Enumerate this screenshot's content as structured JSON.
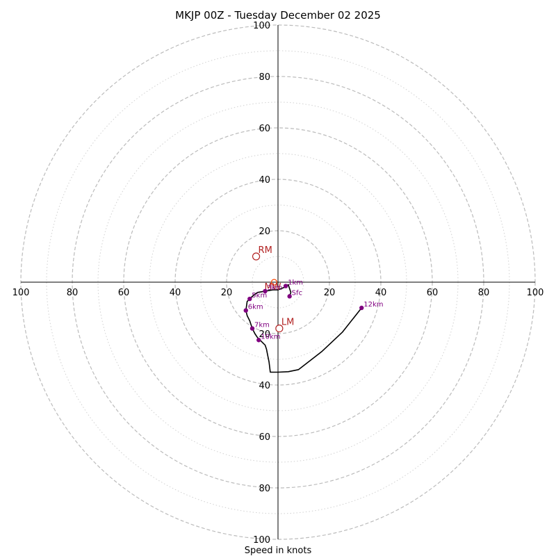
{
  "chart_data": {
    "type": "hodograph",
    "title": "MKJP 00Z - Tuesday December 02 2025",
    "xlabel": "Speed in knots",
    "rings_major": [
      20,
      40,
      60,
      80,
      100
    ],
    "rings_minor": [
      10,
      30,
      50,
      70,
      90
    ],
    "ring_limit": 100,
    "tick_labels": [
      "100",
      "80",
      "60",
      "40",
      "20",
      "20",
      "40",
      "60",
      "80",
      "100"
    ],
    "tick_values": [
      -100,
      -80,
      -60,
      -40,
      -20,
      20,
      40,
      60,
      80,
      100
    ],
    "grid": true,
    "hodograph_trace": [
      [
        4.5,
        -5.5
      ],
      [
        5,
        -4
      ],
      [
        4,
        -1
      ],
      [
        3,
        -1.5
      ],
      [
        2.5,
        -2
      ],
      [
        0,
        -3
      ],
      [
        -2,
        -3
      ],
      [
        -5,
        -3.5
      ],
      [
        -8,
        -4
      ],
      [
        -10,
        -5.5
      ],
      [
        -11,
        -6.5
      ],
      [
        -12,
        -7.5
      ],
      [
        -12.5,
        -11
      ],
      [
        -12,
        -13
      ],
      [
        -11,
        -15
      ],
      [
        -10,
        -18
      ],
      [
        -9,
        -20
      ],
      [
        -8,
        -21.5
      ],
      [
        -6,
        -23.5
      ],
      [
        -5,
        -24.5
      ],
      [
        -4.5,
        -26
      ],
      [
        -4,
        -28.5
      ],
      [
        -3.5,
        -31
      ],
      [
        -3,
        -35
      ],
      [
        0,
        -35
      ],
      [
        4,
        -34.8
      ],
      [
        8,
        -34
      ],
      [
        17,
        -27
      ],
      [
        25,
        -19.5
      ],
      [
        32.5,
        -10
      ]
    ],
    "height_points": [
      {
        "label": "Sfc",
        "u": 4.5,
        "v": -5.5
      },
      {
        "label": "1km",
        "u": 3,
        "v": -1.5
      },
      {
        "label": "3km",
        "u": -5,
        "v": -3.5
      },
      {
        "label": "5km",
        "u": -11,
        "v": -6.5
      },
      {
        "label": "6km",
        "u": -12.5,
        "v": -11
      },
      {
        "label": "7km",
        "u": -10,
        "v": -18
      },
      {
        "label": "10km",
        "u": -7.5,
        "v": -22.5
      },
      {
        "label": "12km",
        "u": 32.5,
        "v": -10
      }
    ],
    "storm_motions": [
      {
        "label": "RM",
        "u": -8.5,
        "v": 10
      },
      {
        "label": "LM",
        "u": 0.5,
        "v": -18
      }
    ],
    "mean_wind": {
      "label": "MW",
      "u": -1.5,
      "v": 0
    },
    "colors": {
      "trace": "#000000",
      "height_points": "#800080",
      "storm_motion": "#b22222",
      "mean_wind": "#ff4500",
      "grid": "#bbbbbb"
    }
  }
}
